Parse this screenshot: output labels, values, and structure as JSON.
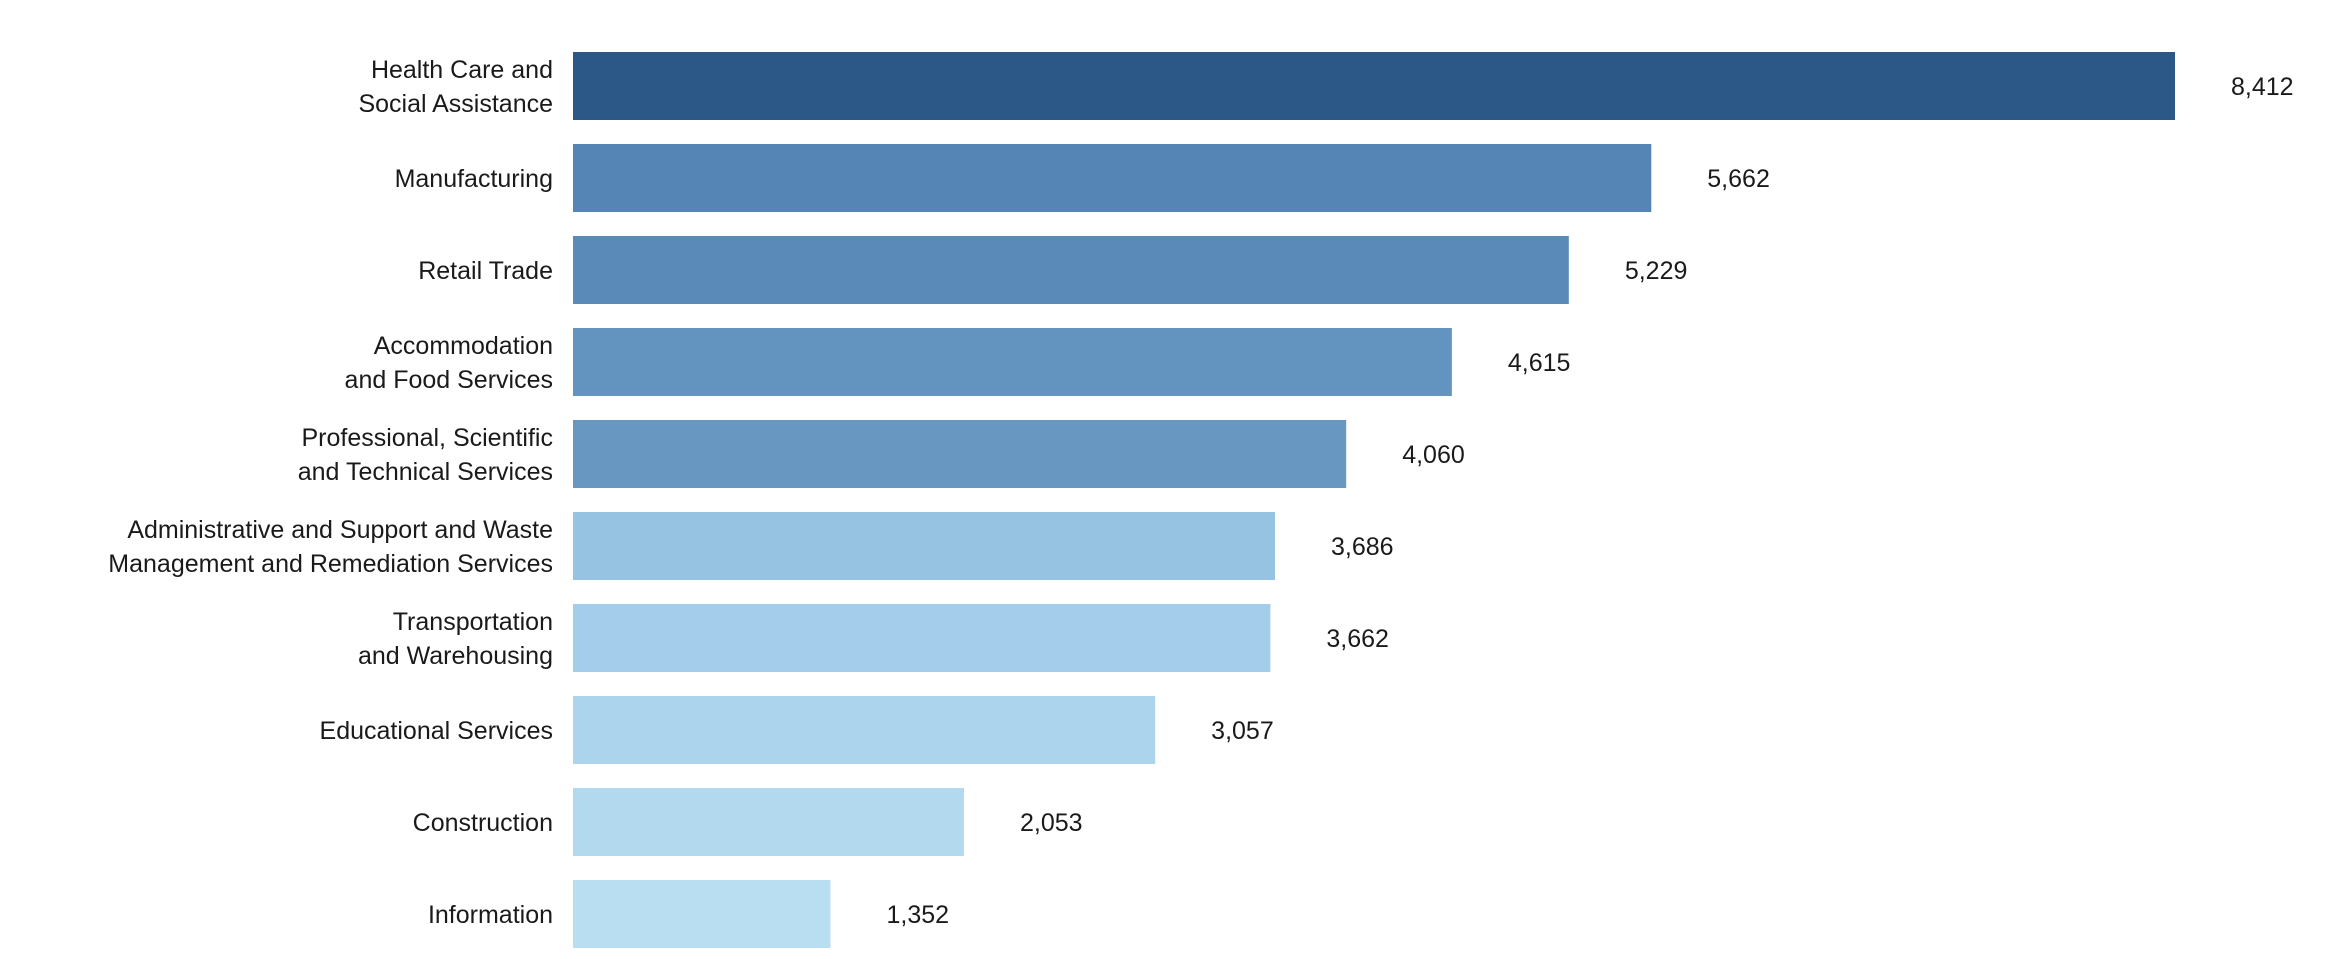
{
  "chart_data": {
    "type": "bar",
    "orientation": "horizontal",
    "categories": [
      [
        "Health Care and",
        "Social Assistance"
      ],
      [
        "Manufacturing"
      ],
      [
        "Retail Trade"
      ],
      [
        "Accommodation",
        "and Food Services"
      ],
      [
        "Professional, Scientific",
        "and Technical Services"
      ],
      [
        "Administrative and Support and Waste",
        "Management and Remediation Services"
      ],
      [
        "Transportation",
        "and Warehousing"
      ],
      [
        "Educational Services"
      ],
      [
        "Construction"
      ],
      [
        "Information"
      ]
    ],
    "values": [
      8412,
      5662,
      5229,
      4615,
      4060,
      3686,
      3662,
      3057,
      2053,
      1352
    ],
    "value_labels": [
      "8,412",
      "5,662",
      "5,229",
      "4,615",
      "4,060",
      "3,686",
      "3,662",
      "3,057",
      "2,053",
      "1,352"
    ],
    "colors": [
      "#2b5886",
      "#5585b5",
      "#5a8ab8",
      "#6394c0",
      "#6897c2",
      "#97c3e3",
      "#a3cdea",
      "#acd4ec",
      "#b3d9ef",
      "#b9ddf1"
    ],
    "xlim": [
      0,
      8412
    ],
    "title": "",
    "xlabel": "",
    "ylabel": "",
    "grid": false,
    "legend": "none"
  }
}
